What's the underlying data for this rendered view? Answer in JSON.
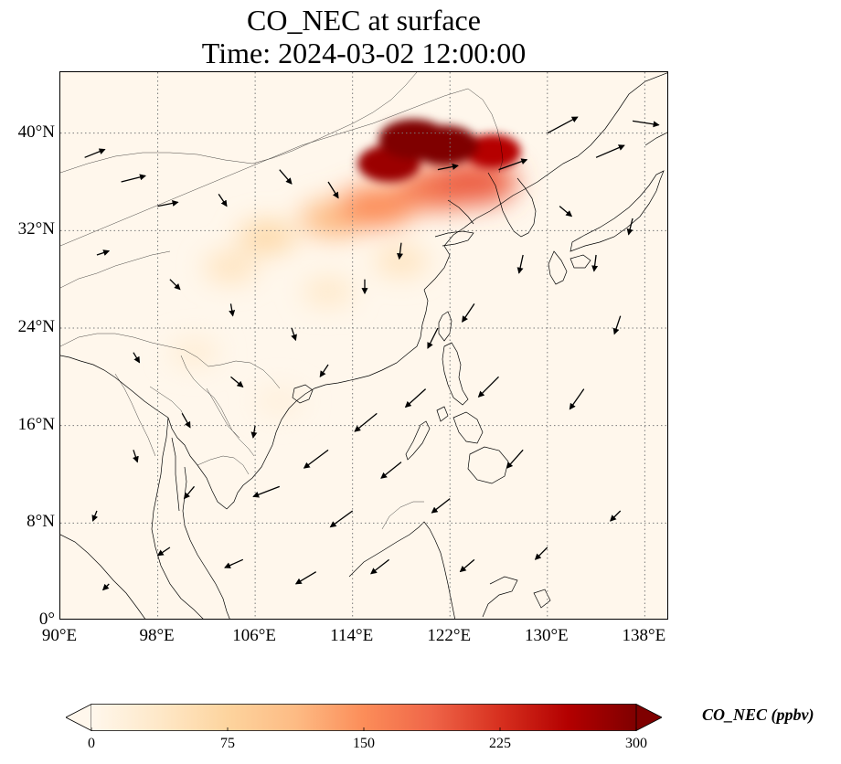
{
  "title": {
    "line1": "CO_NEC at surface",
    "line2": "Time: 2024-03-02 12:00:00"
  },
  "map": {
    "lon_range": [
      90,
      140
    ],
    "lat_range": [
      0,
      45
    ],
    "lon_ticks": [
      "90°E",
      "98°E",
      "106°E",
      "114°E",
      "122°E",
      "130°E",
      "138°E"
    ],
    "lat_ticks": [
      "0°",
      "8°N",
      "16°N",
      "24°N",
      "32°N",
      "40°N"
    ],
    "lon_tick_values": [
      90,
      98,
      106,
      114,
      122,
      130,
      138
    ],
    "lat_tick_values": [
      0,
      8,
      16,
      24,
      32,
      40
    ],
    "gridlines": "dotted"
  },
  "colorbar": {
    "label": "CO_NEC (ppbv)",
    "ticks": [
      "0",
      "75",
      "150",
      "225",
      "300"
    ],
    "tick_values": [
      0,
      75,
      150,
      225,
      300
    ],
    "range": [
      0,
      300
    ],
    "extend": "both",
    "colormap": "OrRd",
    "colors": [
      "#fff7ec",
      "#fee8c8",
      "#fdd49e",
      "#fdbb84",
      "#fc8d59",
      "#ef6548",
      "#d7301f",
      "#b30000",
      "#7f0000"
    ]
  },
  "chart_data": {
    "type": "heatmap",
    "title": "CO_NEC at surface",
    "subtitle": "Time: 2024-03-02 12:00:00",
    "xlabel": "",
    "ylabel": "",
    "xlim": [
      90,
      140
    ],
    "ylim": [
      0,
      45
    ],
    "value_label": "CO_NEC (ppbv)",
    "value_range": [
      0,
      300
    ],
    "plumes": [
      {
        "lon": 119.0,
        "lat": 39.5,
        "value": 300
      },
      {
        "lon": 121.5,
        "lat": 39.0,
        "value": 300
      },
      {
        "lon": 125.5,
        "lat": 38.5,
        "value": 260
      },
      {
        "lon": 117.0,
        "lat": 37.5,
        "value": 280
      },
      {
        "lon": 124.0,
        "lat": 36.0,
        "value": 190
      },
      {
        "lon": 121.0,
        "lat": 35.5,
        "value": 170
      },
      {
        "lon": 116.0,
        "lat": 34.0,
        "value": 150
      },
      {
        "lon": 112.5,
        "lat": 33.0,
        "value": 110
      },
      {
        "lon": 107.0,
        "lat": 31.5,
        "value": 65
      },
      {
        "lon": 104.0,
        "lat": 29.0,
        "value": 45
      },
      {
        "lon": 112.0,
        "lat": 27.0,
        "value": 35
      },
      {
        "lon": 118.0,
        "lat": 29.5,
        "value": 45
      },
      {
        "lon": 101.0,
        "lat": 22.0,
        "value": 25
      },
      {
        "lon": 108.0,
        "lat": 18.0,
        "value": 18
      }
    ],
    "wind_vectors": [
      {
        "lon": 92,
        "lat": 38,
        "u": 1.0,
        "v": 0.4
      },
      {
        "lon": 95,
        "lat": 36,
        "u": 1.2,
        "v": 0.3
      },
      {
        "lon": 98,
        "lat": 34,
        "u": 1.0,
        "v": 0.2
      },
      {
        "lon": 93,
        "lat": 30,
        "u": 0.6,
        "v": 0.2
      },
      {
        "lon": 99,
        "lat": 28,
        "u": 0.5,
        "v": -0.5
      },
      {
        "lon": 103,
        "lat": 35,
        "u": 0.4,
        "v": -0.6
      },
      {
        "lon": 108,
        "lat": 37,
        "u": 0.6,
        "v": -0.7
      },
      {
        "lon": 112,
        "lat": 36,
        "u": 0.5,
        "v": -0.8
      },
      {
        "lon": 115,
        "lat": 28,
        "u": 0.0,
        "v": -0.7
      },
      {
        "lon": 118,
        "lat": 31,
        "u": -0.1,
        "v": -0.8
      },
      {
        "lon": 121,
        "lat": 37,
        "u": 1.0,
        "v": 0.2
      },
      {
        "lon": 126,
        "lat": 37,
        "u": 1.4,
        "v": 0.5
      },
      {
        "lon": 130,
        "lat": 40,
        "u": 1.5,
        "v": 0.8
      },
      {
        "lon": 134,
        "lat": 38,
        "u": 1.4,
        "v": 0.6
      },
      {
        "lon": 137,
        "lat": 41,
        "u": 1.3,
        "v": -0.2
      },
      {
        "lon": 134,
        "lat": 30,
        "u": -0.1,
        "v": -0.8
      },
      {
        "lon": 128,
        "lat": 30,
        "u": -0.2,
        "v": -0.9
      },
      {
        "lon": 124,
        "lat": 26,
        "u": -0.6,
        "v": -0.9
      },
      {
        "lon": 121,
        "lat": 24,
        "u": -0.5,
        "v": -1.0
      },
      {
        "lon": 126,
        "lat": 20,
        "u": -1.0,
        "v": -1.0
      },
      {
        "lon": 120,
        "lat": 19,
        "u": -1.0,
        "v": -0.9
      },
      {
        "lon": 116,
        "lat": 17,
        "u": -1.1,
        "v": -0.9
      },
      {
        "lon": 112,
        "lat": 14,
        "u": -1.2,
        "v": -0.9
      },
      {
        "lon": 118,
        "lat": 13,
        "u": -1.0,
        "v": -0.8
      },
      {
        "lon": 108,
        "lat": 11,
        "u": -1.3,
        "v": -0.5
      },
      {
        "lon": 114,
        "lat": 9,
        "u": -1.1,
        "v": -0.8
      },
      {
        "lon": 122,
        "lat": 10,
        "u": -0.9,
        "v": -0.7
      },
      {
        "lon": 128,
        "lat": 14,
        "u": -0.8,
        "v": -0.9
      },
      {
        "lon": 133,
        "lat": 19,
        "u": -0.7,
        "v": -1.0
      },
      {
        "lon": 136,
        "lat": 25,
        "u": -0.3,
        "v": -0.9
      },
      {
        "lon": 104,
        "lat": 20,
        "u": 0.6,
        "v": -0.5
      },
      {
        "lon": 100,
        "lat": 17,
        "u": 0.4,
        "v": -0.7
      },
      {
        "lon": 96,
        "lat": 14,
        "u": 0.2,
        "v": -0.6
      },
      {
        "lon": 93,
        "lat": 9,
        "u": -0.2,
        "v": -0.5
      },
      {
        "lon": 99,
        "lat": 6,
        "u": -0.6,
        "v": -0.4
      },
      {
        "lon": 105,
        "lat": 5,
        "u": -0.9,
        "v": -0.4
      },
      {
        "lon": 111,
        "lat": 4,
        "u": -1.0,
        "v": -0.6
      },
      {
        "lon": 117,
        "lat": 5,
        "u": -0.9,
        "v": -0.7
      },
      {
        "lon": 124,
        "lat": 5,
        "u": -0.7,
        "v": -0.6
      },
      {
        "lon": 130,
        "lat": 6,
        "u": -0.6,
        "v": -0.6
      },
      {
        "lon": 136,
        "lat": 9,
        "u": -0.5,
        "v": -0.5
      },
      {
        "lon": 109,
        "lat": 24,
        "u": 0.2,
        "v": -0.6
      },
      {
        "lon": 104,
        "lat": 26,
        "u": 0.1,
        "v": -0.6
      },
      {
        "lon": 96,
        "lat": 22,
        "u": 0.3,
        "v": -0.5
      },
      {
        "lon": 112,
        "lat": 21,
        "u": -0.4,
        "v": -0.6
      },
      {
        "lon": 131,
        "lat": 34,
        "u": 0.6,
        "v": -0.5
      },
      {
        "lon": 137,
        "lat": 33,
        "u": -0.2,
        "v": -0.8
      },
      {
        "lon": 94,
        "lat": 3,
        "u": -0.3,
        "v": -0.3
      },
      {
        "lon": 101,
        "lat": 11,
        "u": -0.5,
        "v": -0.6
      },
      {
        "lon": 106,
        "lat": 16,
        "u": -0.1,
        "v": -0.6
      }
    ]
  }
}
